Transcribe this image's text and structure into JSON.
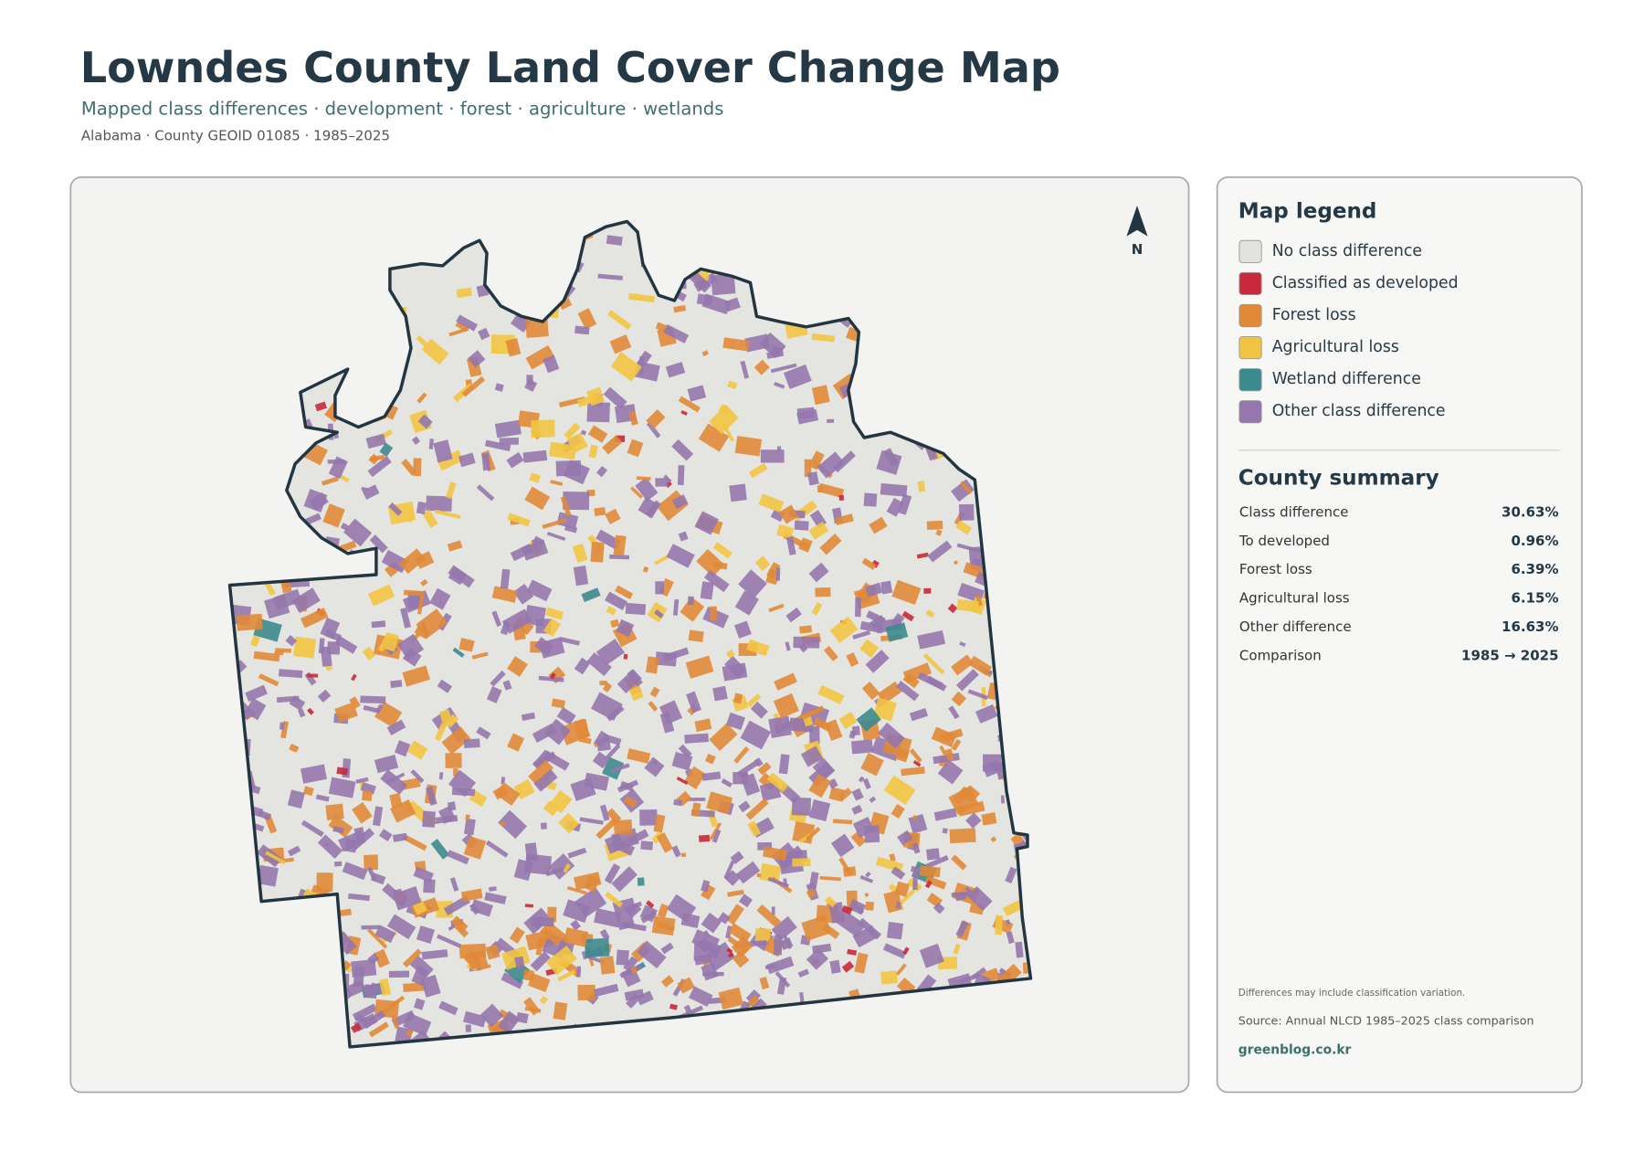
{
  "header": {
    "title": "Lowndes County Land Cover Change Map",
    "subtitle": "Mapped class differences · development · forest · agriculture · wetlands",
    "meta": "Alabama · County GEOID 01085 · 1985–2025"
  },
  "map": {
    "north_label": "N"
  },
  "legend": {
    "title": "Map legend",
    "items": [
      {
        "label": "No class difference",
        "color": "#e2e2de"
      },
      {
        "label": "Classified as developed",
        "color": "#c8293a"
      },
      {
        "label": "Forest loss",
        "color": "#e08a38"
      },
      {
        "label": "Agricultural loss",
        "color": "#f2c443"
      },
      {
        "label": "Wetland difference",
        "color": "#3d8a8e"
      },
      {
        "label": "Other class difference",
        "color": "#9577ad"
      }
    ]
  },
  "summary": {
    "title": "County summary",
    "rows": [
      {
        "label": "Class difference",
        "value": "30.63%"
      },
      {
        "label": "To developed",
        "value": "0.96%"
      },
      {
        "label": "Forest loss",
        "value": "6.39%"
      },
      {
        "label": "Agricultural loss",
        "value": "6.15%"
      },
      {
        "label": "Other difference",
        "value": "16.63%"
      },
      {
        "label": "Comparison",
        "value": "1985 → 2025"
      }
    ]
  },
  "footer": {
    "note": "Differences may include classification variation.",
    "source": "Source: Annual NLCD 1985–2025 class comparison",
    "credit": "greenblog.co.kr"
  }
}
